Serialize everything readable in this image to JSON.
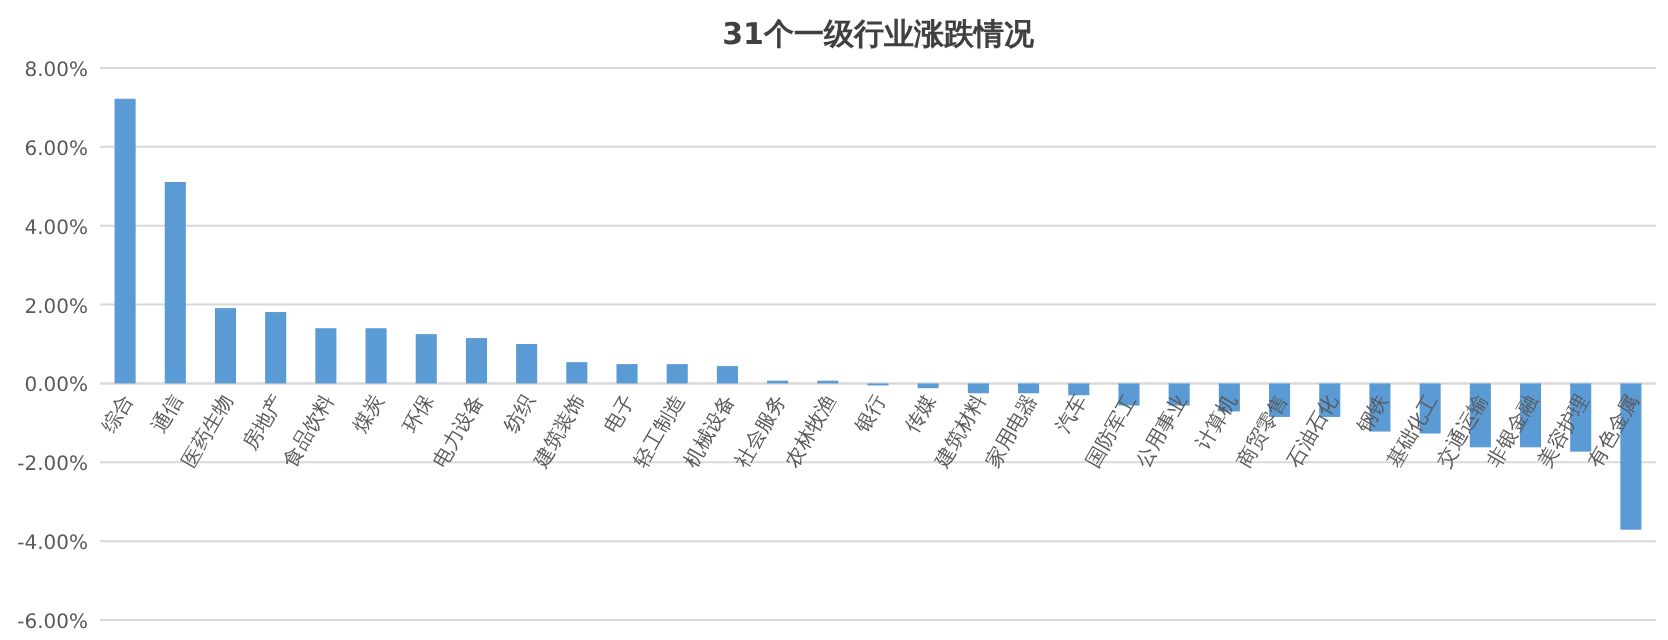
{
  "chart_data": {
    "type": "bar",
    "title": "31个一级行业涨跌情况",
    "categories": [
      "综合",
      "通信",
      "医药生物",
      "房地产",
      "食品饮料",
      "煤炭",
      "环保",
      "电力设备",
      "纺织",
      "建筑装饰",
      "电子",
      "轻工制造",
      "机械设备",
      "社会服务",
      "农林牧渔",
      "银行",
      "传媒",
      "建筑材料",
      "家用电器",
      "汽车",
      "国防军工",
      "公用事业",
      "计算机",
      "商贸零售",
      "石油石化",
      "钢铁",
      "基础化工",
      "交通运输",
      "非银金融",
      "美容护理",
      "有色金属"
    ],
    "values": [
      7.22,
      5.11,
      1.91,
      1.81,
      1.4,
      1.4,
      1.25,
      1.15,
      1.0,
      0.54,
      0.49,
      0.49,
      0.44,
      0.07,
      0.07,
      -0.05,
      -0.12,
      -0.25,
      -0.25,
      -0.3,
      -0.56,
      -0.56,
      -0.71,
      -0.85,
      -0.85,
      -1.22,
      -1.27,
      -1.62,
      -1.62,
      -1.73,
      -3.71
    ],
    "color": "#5b9bd5",
    "ylim": [
      -6,
      8
    ],
    "yticks": [
      {
        "value": -6,
        "label": "-6.00%"
      },
      {
        "value": -4,
        "label": "-4.00%"
      },
      {
        "value": -2,
        "label": "-2.00%"
      },
      {
        "value": 0,
        "label": "0.00%"
      },
      {
        "value": 2,
        "label": "2.00%"
      },
      {
        "value": 4,
        "label": "4.00%"
      },
      {
        "value": 6,
        "label": "6.00%"
      },
      {
        "value": 8,
        "label": "8.00%"
      }
    ],
    "grid": "y"
  }
}
